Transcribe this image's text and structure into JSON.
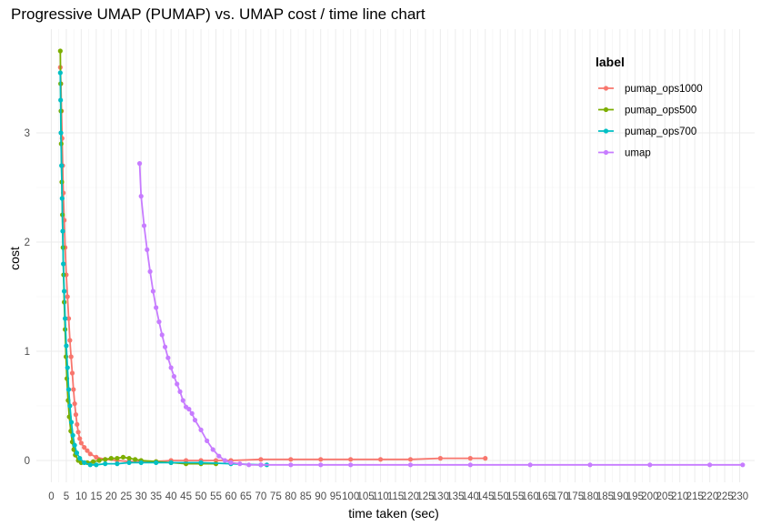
{
  "chart_data": {
    "type": "line",
    "title": "Progressive UMAP (PUMAP) vs. UMAP cost / time line chart",
    "xlabel": "time taken (sec)",
    "ylabel": "cost",
    "xlim": [
      -5,
      235
    ],
    "ylim": [
      -0.2,
      3.95
    ],
    "x_ticks": [
      0,
      5,
      10,
      15,
      20,
      25,
      30,
      35,
      40,
      45,
      50,
      55,
      60,
      65,
      70,
      75,
      80,
      85,
      90,
      95,
      100,
      105,
      110,
      115,
      120,
      125,
      130,
      135,
      140,
      145,
      150,
      155,
      160,
      165,
      170,
      175,
      180,
      185,
      190,
      195,
      200,
      205,
      210,
      215,
      220,
      225,
      230
    ],
    "x_tick_labels": [
      "0",
      "5",
      "10",
      "15",
      "20",
      "25",
      "30",
      "35",
      "40",
      "45",
      "50",
      "55",
      "60",
      "65",
      "70",
      "75",
      "80",
      "85",
      "90",
      "95",
      "100",
      "105",
      "110",
      "115",
      "120",
      "125",
      "130",
      "135",
      "140",
      "145",
      "150",
      "155",
      "160",
      "165",
      "170",
      "175",
      "180",
      "185",
      "190",
      "195",
      "200",
      "205",
      "210",
      "215",
      "220",
      "225",
      "230"
    ],
    "y_ticks": [
      0,
      1,
      2,
      3
    ],
    "y_tick_labels": [
      "0",
      "1",
      "2",
      "3"
    ],
    "grid": true,
    "legend": {
      "title": "label",
      "position": "top-right"
    },
    "series": [
      {
        "name": "pumap_ops1000",
        "color": "#F8766D",
        "x": [
          3,
          3.2,
          3.4,
          3.6,
          3.8,
          4.0,
          4.3,
          4.6,
          5.0,
          5.4,
          5.8,
          6.2,
          6.6,
          7.0,
          7.4,
          7.8,
          8.2,
          8.6,
          9.0,
          9.5,
          10,
          11,
          12,
          13,
          15,
          18,
          22,
          26,
          30,
          35,
          40,
          45,
          50,
          55,
          60,
          70,
          80,
          90,
          100,
          110,
          120,
          130,
          140,
          145
        ],
        "y": [
          3.6,
          3.45,
          3.2,
          2.95,
          2.7,
          2.45,
          2.2,
          1.95,
          1.7,
          1.5,
          1.3,
          1.1,
          0.95,
          0.8,
          0.65,
          0.52,
          0.42,
          0.33,
          0.26,
          0.2,
          0.16,
          0.12,
          0.09,
          0.06,
          0.03,
          0.01,
          0.0,
          -0.01,
          -0.01,
          -0.01,
          0.0,
          0.0,
          0.0,
          0.0,
          0.0,
          0.01,
          0.01,
          0.01,
          0.01,
          0.01,
          0.01,
          0.02,
          0.02,
          0.02
        ]
      },
      {
        "name": "pumap_ops500",
        "color": "#7CAE00",
        "x": [
          3,
          3.1,
          3.2,
          3.3,
          3.5,
          3.7,
          3.9,
          4.1,
          4.3,
          4.6,
          4.9,
          5.2,
          5.6,
          6.0,
          6.5,
          7.0,
          7.5,
          8.0,
          9.0,
          10,
          12,
          14,
          16,
          18,
          20,
          22,
          24,
          26,
          28,
          30,
          35,
          40,
          45,
          50,
          55
        ],
        "y": [
          3.75,
          3.45,
          3.2,
          2.9,
          2.55,
          2.25,
          1.95,
          1.7,
          1.45,
          1.2,
          0.95,
          0.75,
          0.55,
          0.4,
          0.27,
          0.17,
          0.1,
          0.05,
          0.0,
          -0.02,
          -0.02,
          -0.01,
          0.0,
          0.01,
          0.02,
          0.02,
          0.03,
          0.02,
          0.01,
          0.0,
          -0.01,
          -0.02,
          -0.03,
          -0.03,
          -0.03
        ]
      },
      {
        "name": "pumap_ops700",
        "color": "#00BFC4",
        "x": [
          3,
          3.1,
          3.2,
          3.4,
          3.6,
          3.8,
          4.0,
          4.3,
          4.6,
          5.0,
          5.4,
          5.8,
          6.2,
          6.7,
          7.2,
          7.8,
          8.5,
          9.5,
          11,
          13,
          15,
          18,
          22,
          26,
          30,
          35,
          40,
          50,
          60,
          70,
          72
        ],
        "y": [
          3.55,
          3.3,
          3.0,
          2.7,
          2.4,
          2.1,
          1.8,
          1.55,
          1.3,
          1.05,
          0.85,
          0.65,
          0.5,
          0.35,
          0.23,
          0.14,
          0.07,
          0.02,
          -0.02,
          -0.04,
          -0.04,
          -0.03,
          -0.03,
          -0.02,
          -0.02,
          -0.02,
          -0.02,
          -0.02,
          -0.03,
          -0.04,
          -0.04
        ]
      },
      {
        "name": "umap",
        "color": "#C77CFF",
        "x": [
          29.5,
          30,
          31,
          32,
          33,
          34,
          35,
          36,
          37,
          38,
          39,
          40,
          41,
          42,
          43,
          44,
          45,
          46,
          47,
          48,
          50,
          52,
          54,
          56,
          58,
          60,
          63,
          66,
          70,
          80,
          90,
          100,
          120,
          140,
          160,
          180,
          200,
          220,
          231
        ],
        "y": [
          2.72,
          2.42,
          2.15,
          1.93,
          1.73,
          1.55,
          1.4,
          1.27,
          1.15,
          1.04,
          0.94,
          0.85,
          0.77,
          0.7,
          0.63,
          0.55,
          0.49,
          0.47,
          0.43,
          0.37,
          0.28,
          0.18,
          0.1,
          0.04,
          0.0,
          -0.02,
          -0.03,
          -0.04,
          -0.04,
          -0.04,
          -0.04,
          -0.04,
          -0.04,
          -0.04,
          -0.04,
          -0.04,
          -0.04,
          -0.04,
          -0.04
        ]
      }
    ]
  }
}
